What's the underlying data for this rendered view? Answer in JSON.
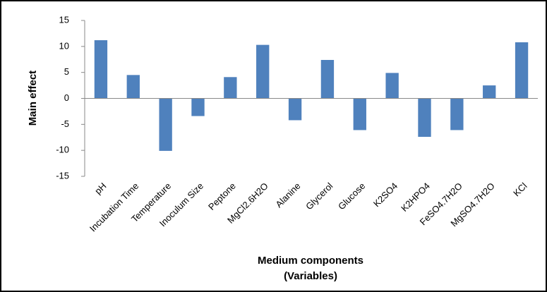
{
  "chart_data": {
    "type": "bar",
    "y_label": "Main effect",
    "x_label": [
      "Medium components",
      "(Variables)"
    ],
    "categories": [
      "pH",
      "Incubation Time",
      "Temperature",
      "Inoculum Size",
      "Peptone",
      "MgCl2.6H2O",
      "Alanine",
      "Glycerol",
      "Glucose",
      "K2SO4",
      "K2HPO4",
      "FeSO4.7H2O",
      "MgSO4.7H2O",
      "KCl"
    ],
    "values": [
      11.2,
      4.5,
      -10.1,
      -3.4,
      4.1,
      10.3,
      -4.2,
      7.4,
      -6.1,
      4.9,
      -7.4,
      -6.1,
      2.5,
      10.8
    ],
    "color": "#4f81bd",
    "ylim": [
      -15,
      15
    ],
    "yticks": [
      -15,
      -10,
      -5,
      0,
      5,
      10,
      15
    ],
    "grid": false
  }
}
